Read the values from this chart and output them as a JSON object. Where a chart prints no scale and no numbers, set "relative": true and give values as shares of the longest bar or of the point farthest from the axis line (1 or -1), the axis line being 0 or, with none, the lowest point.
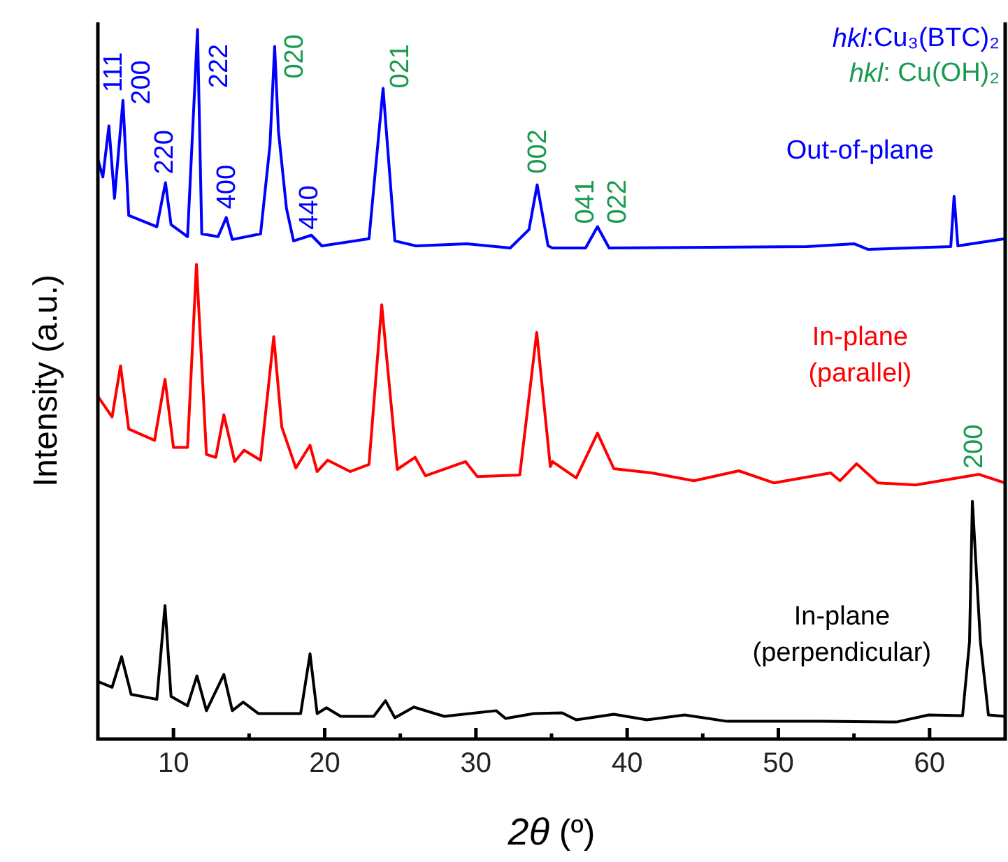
{
  "chart_data": {
    "type": "line",
    "relative": true,
    "xlabel": "2θ (º)",
    "ylabel": "Intensity (a.u.)",
    "xlim": [
      5,
      65
    ],
    "xticks": [
      {
        "value": 10,
        "label": "10"
      },
      {
        "value": 15,
        "label": null
      },
      {
        "value": 20,
        "label": "20"
      },
      {
        "value": 25,
        "label": null
      },
      {
        "value": 30,
        "label": "30"
      },
      {
        "value": 35,
        "label": null
      },
      {
        "value": 40,
        "label": "40"
      },
      {
        "value": 45,
        "label": null
      },
      {
        "value": 50,
        "label": "50"
      },
      {
        "value": 55,
        "label": null
      },
      {
        "value": 60,
        "label": "60"
      }
    ],
    "grid": false,
    "legend": false,
    "marker": "none",
    "line_style": "solid",
    "series": [
      {
        "name": "Out-of-plane",
        "color": "#0000ff",
        "x": [
          5.0,
          5.33,
          5.73,
          6.1,
          6.66,
          7.04,
          8.9,
          9.47,
          9.84,
          10.93,
          11.59,
          11.87,
          12.95,
          13.49,
          13.89,
          15.76,
          16.38,
          16.69,
          16.94,
          17.47,
          17.94,
          19.12,
          19.81,
          22.93,
          23.86,
          24.64,
          26.04,
          29.4,
          32.27,
          33.51,
          34.05,
          34.77,
          35.07,
          37.25,
          38.04,
          38.81,
          51.9,
          55.0,
          55.94,
          61.4,
          61.62,
          61.87,
          64.98
        ],
        "values": [
          0.817,
          0.792,
          0.864,
          0.762,
          0.9,
          0.738,
          0.722,
          0.784,
          0.725,
          0.708,
          1.0,
          0.712,
          0.708,
          0.735,
          0.704,
          0.712,
          0.837,
          0.976,
          0.857,
          0.748,
          0.702,
          0.71,
          0.695,
          0.705,
          0.917,
          0.702,
          0.695,
          0.698,
          0.692,
          0.718,
          0.781,
          0.695,
          0.692,
          0.692,
          0.722,
          0.692,
          0.694,
          0.698,
          0.69,
          0.694,
          0.765,
          0.695,
          0.705
        ]
      },
      {
        "name": "In-plane\n(parallel)",
        "color": "#ff0000",
        "x": [
          5.0,
          5.94,
          6.5,
          7.04,
          8.75,
          9.44,
          10.0,
          10.93,
          11.52,
          12.18,
          12.8,
          13.33,
          14.05,
          14.67,
          15.76,
          16.63,
          17.16,
          18.09,
          19.03,
          19.5,
          20.19,
          21.68,
          22.93,
          23.77,
          24.8,
          25.98,
          26.66,
          29.31,
          30.09,
          32.9,
          34.02,
          34.92,
          35.07,
          36.63,
          38.04,
          39.12,
          41.62,
          44.42,
          47.38,
          49.72,
          53.46,
          54.08,
          55.17,
          56.57,
          59.07,
          63.27,
          64.98
        ],
        "values": [
          0.483,
          0.454,
          0.526,
          0.437,
          0.421,
          0.507,
          0.411,
          0.411,
          0.669,
          0.401,
          0.397,
          0.457,
          0.391,
          0.407,
          0.393,
          0.567,
          0.44,
          0.382,
          0.414,
          0.377,
          0.393,
          0.377,
          0.387,
          0.612,
          0.38,
          0.397,
          0.371,
          0.391,
          0.37,
          0.372,
          0.573,
          0.384,
          0.391,
          0.368,
          0.431,
          0.381,
          0.375,
          0.364,
          0.378,
          0.361,
          0.375,
          0.364,
          0.388,
          0.361,
          0.358,
          0.373,
          0.361
        ]
      },
      {
        "name": "In-plane\n(perpendicular)",
        "color": "#000000",
        "x": [
          5.0,
          5.94,
          6.57,
          7.2,
          8.9,
          9.44,
          9.84,
          10.93,
          11.55,
          12.18,
          13.33,
          13.89,
          14.61,
          15.61,
          18.41,
          19.03,
          19.5,
          20.12,
          21.06,
          23.24,
          24.02,
          24.64,
          25.89,
          27.91,
          31.34,
          31.96,
          33.83,
          35.7,
          36.63,
          39.12,
          41.31,
          43.8,
          46.6,
          52.83,
          57.81,
          59.93,
          62.18,
          62.64,
          62.83,
          63.36,
          63.89,
          64.98
        ],
        "values": [
          0.081,
          0.073,
          0.116,
          0.063,
          0.056,
          0.188,
          0.06,
          0.047,
          0.089,
          0.04,
          0.091,
          0.04,
          0.052,
          0.036,
          0.036,
          0.12,
          0.036,
          0.044,
          0.032,
          0.032,
          0.054,
          0.03,
          0.045,
          0.032,
          0.04,
          0.029,
          0.036,
          0.037,
          0.027,
          0.035,
          0.027,
          0.034,
          0.025,
          0.025,
          0.024,
          0.034,
          0.033,
          0.137,
          0.335,
          0.137,
          0.034,
          0.032
        ]
      }
    ],
    "annotations": [
      "hkl:Cu₃(BTC)₂",
      "hkl: Cu(OH)₂",
      {
        "text": "111",
        "x": 5.73,
        "y": 0.864
      },
      {
        "text": "200",
        "x": 6.66,
        "y": 0.9
      },
      {
        "text": "220",
        "x": 9.47,
        "y": 0.784
      },
      {
        "text": "222",
        "x": 11.59,
        "y": 1.0
      },
      {
        "text": "400",
        "x": 13.49,
        "y": 0.735
      },
      {
        "text": "440",
        "x": 19.12,
        "y": 0.71
      },
      {
        "text": "020",
        "x": 16.69,
        "y": 0.976
      },
      {
        "text": "021",
        "x": 23.86,
        "y": 0.917
      },
      {
        "text": "002",
        "x": 34.05,
        "y": 0.781
      },
      {
        "text": "041",
        "x": 38.04,
        "y": 0.722
      },
      {
        "text": "022",
        "x": 38.04,
        "y": 0.722
      },
      {
        "text": "200",
        "x": 63.27,
        "y": 0.373
      }
    ]
  }
}
